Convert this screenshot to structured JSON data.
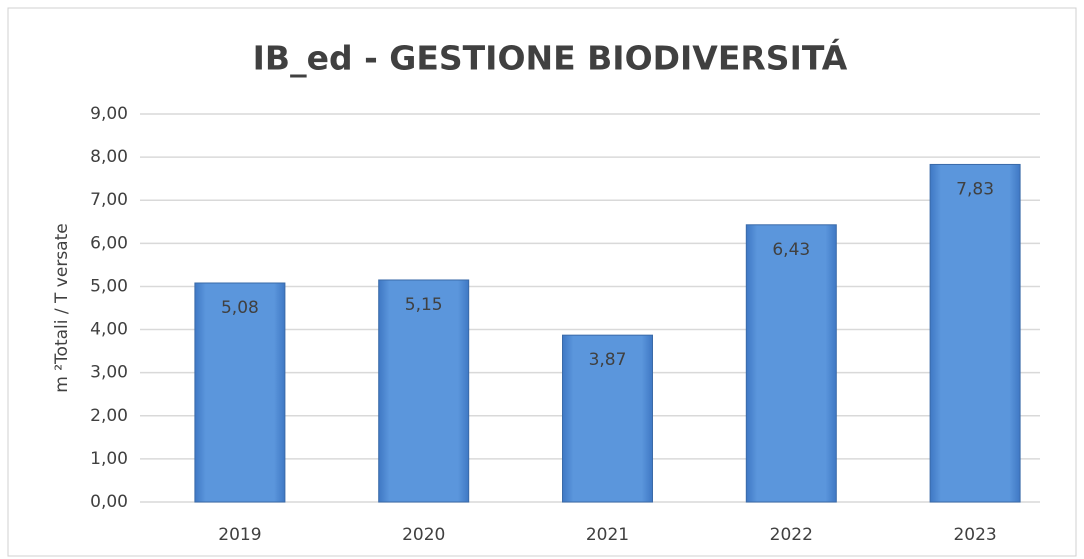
{
  "chart_data": {
    "type": "bar",
    "title": "IB_ed - GESTIONE BIODIVERSITÁ",
    "y_label": "m ²Totali / T versate",
    "categories": [
      "2019",
      "2020",
      "2021",
      "2022",
      "2023"
    ],
    "values": [
      5.08,
      5.15,
      3.87,
      6.43,
      7.83
    ],
    "value_labels": [
      "5,08",
      "5,15",
      "3,87",
      "6,43",
      "7,83"
    ],
    "color": "#5b96dc",
    "ylim": [
      0,
      9
    ],
    "yticks": [
      {
        "value": 0,
        "label": "0,00"
      },
      {
        "value": 1,
        "label": "1,00"
      },
      {
        "value": 2,
        "label": "2,00"
      },
      {
        "value": 3,
        "label": "3,00"
      },
      {
        "value": 4,
        "label": "4,00"
      },
      {
        "value": 5,
        "label": "5,00"
      },
      {
        "value": 6,
        "label": "6,00"
      },
      {
        "value": 7,
        "label": "7,00"
      },
      {
        "value": 8,
        "label": "8,00"
      },
      {
        "value": 9,
        "label": "9,00"
      }
    ],
    "grid": true
  }
}
